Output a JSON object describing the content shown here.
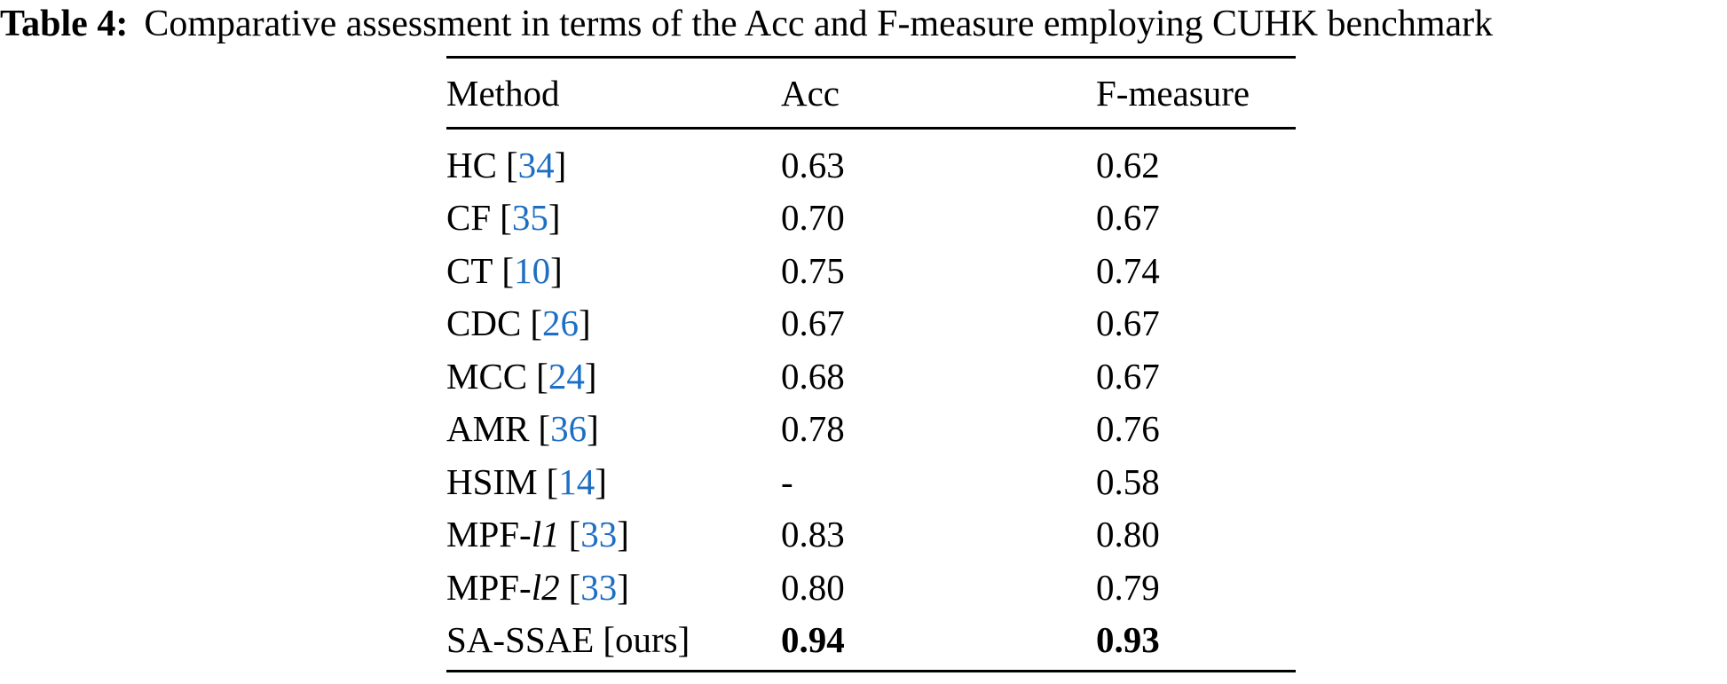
{
  "caption": {
    "label": "Table 4:",
    "text": "Comparative assessment in terms of the Acc and F-measure employing CUHK benchmark"
  },
  "colors": {
    "citation_link": "#1e6fc4",
    "text": "#000000",
    "background": "#ffffff"
  },
  "table": {
    "headers": {
      "method": "Method",
      "acc": "Acc",
      "fmeasure": "F-measure"
    },
    "brackets": {
      "open": "[",
      "close": "]"
    },
    "rows": [
      {
        "name": "HC",
        "name_italic": "",
        "ref": "34",
        "acc": "0.63",
        "fmeasure": "0.62"
      },
      {
        "name": "CF",
        "name_italic": "",
        "ref": "35",
        "acc": "0.70",
        "fmeasure": "0.67"
      },
      {
        "name": "CT",
        "name_italic": "",
        "ref": "10",
        "acc": "0.75",
        "fmeasure": "0.74"
      },
      {
        "name": "CDC",
        "name_italic": "",
        "ref": "26",
        "acc": "0.67",
        "fmeasure": "0.67"
      },
      {
        "name": "MCC",
        "name_italic": "",
        "ref": "24",
        "acc": "0.68",
        "fmeasure": "0.67"
      },
      {
        "name": "AMR",
        "name_italic": "",
        "ref": "36",
        "acc": "0.78",
        "fmeasure": "0.76"
      },
      {
        "name": "HSIM",
        "name_italic": "",
        "ref": "14",
        "acc": "-",
        "fmeasure": "0.58"
      },
      {
        "name": "MPF-",
        "name_italic": "l1",
        "ref": "33",
        "acc": "0.83",
        "fmeasure": "0.80"
      },
      {
        "name": "MPF-",
        "name_italic": "l2",
        "ref": "33",
        "acc": "0.80",
        "fmeasure": "0.79"
      },
      {
        "name": "SA-SSAE",
        "name_italic": "",
        "ref": "ours",
        "acc": "0.94",
        "fmeasure": "0.93"
      }
    ]
  }
}
